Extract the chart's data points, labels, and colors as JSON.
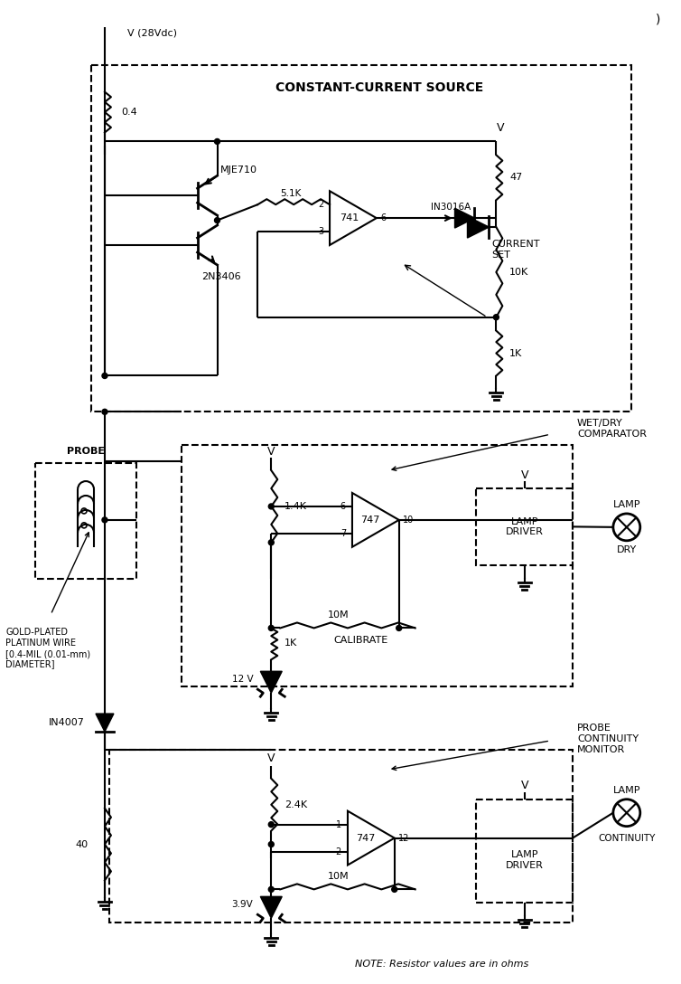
{
  "bg_color": "#ffffff",
  "fig_width": 7.54,
  "fig_height": 10.88,
  "labels": {
    "v28vdc": "V (28Vdc)",
    "constant_current": "CONSTANT-CURRENT SOURCE",
    "mje710": "MJE710",
    "r04": "0.4",
    "r51k_1": "5.1K",
    "r51k_2": "5.1K",
    "ic741": "741",
    "r47": "47",
    "in3016a": "IN3016A",
    "r10k": "10K",
    "r1k_top": "1K",
    "current_set": "CURRENT\nSET",
    "n2n3406": "2N3406",
    "wet_dry": "WET/DRY\nCOMPARATOR",
    "probe": "PROBE",
    "gold_plated": "GOLD-PLATED\nPLATINUM WIRE\n[0.4-MIL (0.01-mm)\nDIAMETER]",
    "r14k": "1.4K",
    "ic747_1": "747",
    "r10m_1": "10M",
    "calibrate": "CALIBRATE",
    "r1k_mid": "1K",
    "zener12v": "12 V",
    "lamp_driver1": "LAMP\nDRIVER",
    "lamp1": "LAMP",
    "dry": "DRY",
    "in4007": "IN4007",
    "probe_cont": "PROBE\nCONTINUITY\nMONITOR",
    "r40": "40",
    "r24k": "2.4K",
    "ic747_2": "747",
    "r10m_2": "10M",
    "zener39v": "3.9V",
    "lamp_driver2": "LAMP\nDRIVER",
    "lamp2": "LAMP",
    "continuity": "CONTINUITY",
    "note": "NOTE: Resistor values are in ohms",
    "page_mark": ")"
  }
}
